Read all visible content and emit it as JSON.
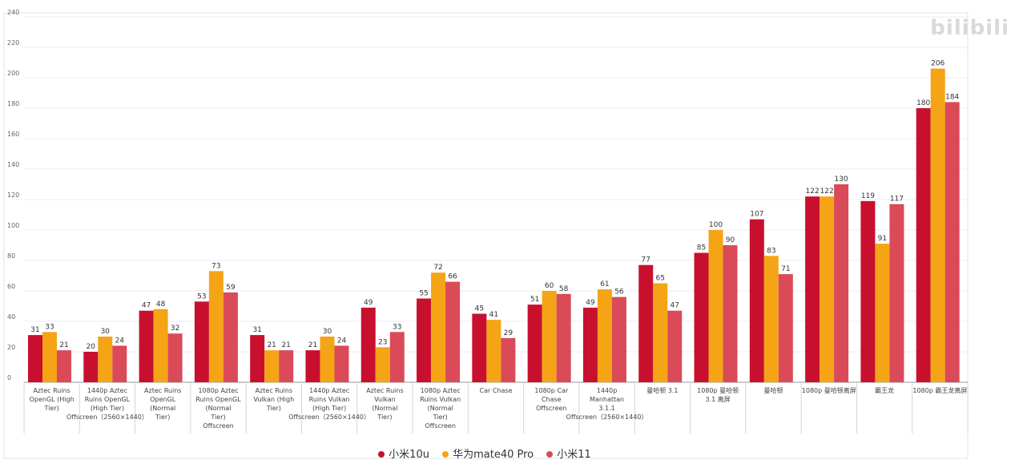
{
  "watermark": "bilibili",
  "chart_data": {
    "type": "bar",
    "ylim": [
      0,
      240
    ],
    "yticks": [
      0,
      20,
      40,
      60,
      80,
      100,
      120,
      140,
      160,
      180,
      200,
      220,
      240
    ],
    "grid": true,
    "legend_position": "bottom",
    "categories": [
      "Aztec Ruins OpenGL (High Tier)",
      "1440p Aztec Ruins OpenGL (High Tier) Offscreen（2560×1440）",
      "Aztec Ruins OpenGL (Normal Tier)",
      "1080p Aztec Ruins OpenGL (Normal Tier) Offscreen",
      "Aztec Ruins Vulkan (High Tier)",
      "1440p Aztec Ruins Vulkan (High Tier) Offscreen（2560×1440）",
      "Aztec Ruins Vulkan (Normal Tier)",
      "1080p Aztec Ruins Vulkan (Normal Tier) Offscreen",
      "Car Chase",
      "1080p Car Chase Offscreen",
      "1440p Manhattan 3.1.1 Offscreen（2560×1440）",
      "曼哈顿 3.1",
      "1080p 曼哈顿 3.1 离屏",
      "曼哈顿",
      "1080p 曼哈顿离屏",
      "霸王龙",
      "1080p 霸王龙离屏"
    ],
    "series": [
      {
        "name": "小米10u",
        "color": "#c8102e",
        "values": [
          31,
          20,
          47,
          53,
          31,
          21,
          49,
          55,
          45,
          51,
          49,
          77,
          85,
          107,
          122,
          119,
          180
        ]
      },
      {
        "name": "华为mate40 Pro",
        "color": "#f5a416",
        "values": [
          33,
          30,
          48,
          73,
          21,
          30,
          23,
          72,
          41,
          60,
          61,
          65,
          100,
          83,
          122,
          91,
          206
        ]
      },
      {
        "name": "小米11",
        "color": "#da4a58",
        "values": [
          21,
          24,
          32,
          59,
          21,
          24,
          33,
          66,
          29,
          58,
          56,
          47,
          90,
          71,
          130,
          117,
          184
        ]
      }
    ]
  }
}
